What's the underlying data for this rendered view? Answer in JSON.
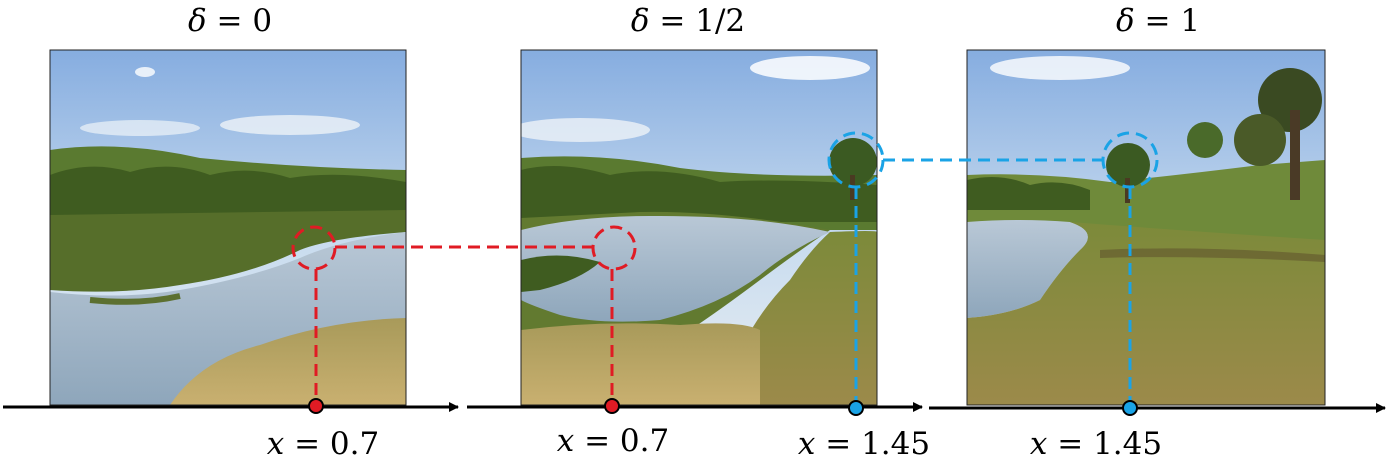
{
  "panels": [
    {
      "id": "delta-0",
      "title_symbol": "δ",
      "title_value": "0"
    },
    {
      "id": "delta-half",
      "title_symbol": "δ",
      "title_value": "1/2"
    },
    {
      "id": "delta-1",
      "title_symbol": "δ",
      "title_value": "1"
    }
  ],
  "markers": [
    {
      "id": "red-0",
      "symbol": "x",
      "value": "0.7",
      "color": "#e01b24"
    },
    {
      "id": "red-half",
      "symbol": "x",
      "value": "0.7",
      "color": "#e01b24"
    },
    {
      "id": "blue-half",
      "symbol": "x",
      "value": "1.45",
      "color": "#1aa3e6"
    },
    {
      "id": "blue-1",
      "symbol": "x",
      "value": "1.45",
      "color": "#1aa3e6"
    }
  ],
  "colors": {
    "red_marker": "#e01b24",
    "blue_marker": "#1aa3e6",
    "axis": "#000000",
    "sky_top": "#8fb4e0",
    "sky_bottom": "#dce8f2",
    "water": "#a9bdd0",
    "vegetation_dark": "#3d5a1f",
    "vegetation_light": "#8a8a3a",
    "grass_dry": "#b8a35a"
  }
}
